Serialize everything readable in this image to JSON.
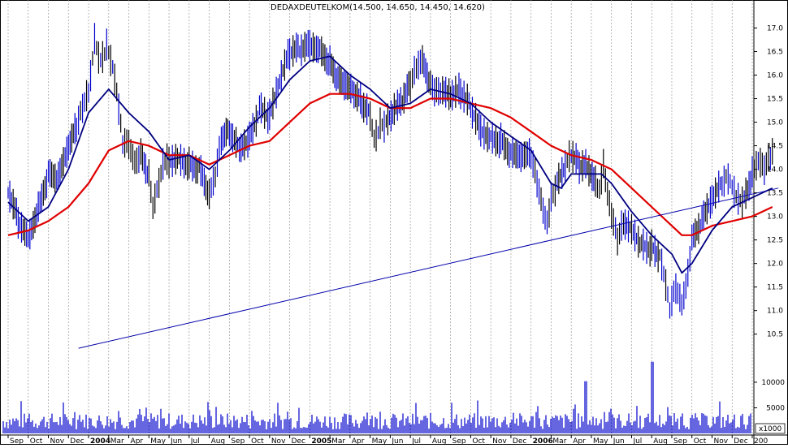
{
  "chart_data": {
    "type": "line",
    "title": "DEDAXDEUTELKOM(14.500, 14.650, 14.450, 14.620)",
    "price_axis": {
      "ticks": [
        "17.0",
        "16.5",
        "16.0",
        "15.5",
        "15.0",
        "14.5",
        "14.0",
        "13.5",
        "13.0",
        "12.5",
        "12.0",
        "11.5",
        "11.0",
        "10.5"
      ],
      "ylim": [
        10.15,
        17.25
      ]
    },
    "volume_axis": {
      "ticks": [
        "10000",
        "5000"
      ],
      "base_label": "x1000",
      "ylim": [
        0,
        16500
      ]
    },
    "x_ticks": [
      "Sep",
      "Oct",
      "Nov",
      "Dec",
      "2004",
      "Mar",
      "Apr",
      "May",
      "Jun",
      "Jul",
      "Aug",
      "Sep",
      "Oct",
      "Nov",
      "Dec",
      "2005",
      "Mar",
      "Apr",
      "May",
      "Jun",
      "Jul",
      "Aug",
      "Sep",
      "Oct",
      "Nov",
      "Dec",
      "2006",
      "Mar",
      "Apr",
      "May",
      "Jun",
      "Jul",
      "Aug",
      "Sep",
      "Oct",
      "Nov",
      "Dec",
      "200"
    ],
    "x_range": {
      "start": "2003-09",
      "end": "2006-12"
    },
    "grid": true,
    "series": [
      {
        "kind": "price-bars",
        "color": "#0000cc",
        "points": [
          [
            0,
            13.5
          ],
          [
            0.5,
            13.0
          ],
          [
            1,
            12.7
          ],
          [
            1.5,
            13.3
          ],
          [
            2,
            13.9
          ],
          [
            2.5,
            13.7
          ],
          [
            3,
            14.3
          ],
          [
            3.4,
            14.8
          ],
          [
            3.7,
            15.4
          ],
          [
            4.0,
            15.8
          ],
          [
            4.3,
            16.9
          ],
          [
            4.6,
            16.3
          ],
          [
            4.9,
            16.5
          ],
          [
            5.2,
            16.0
          ],
          [
            5.5,
            15.2
          ],
          [
            5.7,
            14.6
          ],
          [
            6.0,
            14.7
          ],
          [
            6.3,
            14.3
          ],
          [
            6.6,
            14.4
          ],
          [
            7.0,
            13.8
          ],
          [
            7.2,
            13.0
          ],
          [
            7.5,
            13.6
          ],
          [
            7.8,
            14.2
          ],
          [
            8.0,
            14.3
          ],
          [
            8.5,
            14.4
          ],
          [
            9.0,
            14.2
          ],
          [
            9.5,
            14.0
          ],
          [
            10.0,
            13.3
          ],
          [
            10.3,
            13.7
          ],
          [
            10.6,
            14.6
          ],
          [
            11.0,
            14.9
          ],
          [
            11.5,
            14.6
          ],
          [
            12.0,
            14.8
          ],
          [
            12.5,
            15.3
          ],
          [
            13.0,
            15.0
          ],
          [
            13.5,
            15.7
          ],
          [
            14.0,
            16.4
          ],
          [
            14.5,
            16.6
          ],
          [
            15.0,
            16.8
          ],
          [
            15.5,
            16.7
          ],
          [
            16.0,
            16.3
          ],
          [
            16.4,
            15.8
          ],
          [
            16.8,
            15.6
          ],
          [
            17.2,
            15.5
          ],
          [
            17.6,
            15.4
          ],
          [
            18.0,
            15.3
          ],
          [
            18.2,
            14.8
          ],
          [
            18.5,
            15.0
          ],
          [
            18.8,
            14.9
          ],
          [
            19.2,
            15.1
          ],
          [
            19.6,
            15.3
          ],
          [
            20.0,
            15.8
          ],
          [
            20.3,
            16.3
          ],
          [
            20.6,
            16.5
          ],
          [
            21.0,
            15.9
          ],
          [
            21.3,
            15.6
          ],
          [
            21.6,
            15.5
          ],
          [
            22.0,
            15.4
          ],
          [
            22.5,
            15.6
          ],
          [
            23.0,
            15.4
          ],
          [
            23.5,
            15.0
          ],
          [
            24.0,
            14.8
          ],
          [
            24.5,
            14.6
          ],
          [
            25.0,
            14.2
          ],
          [
            25.5,
            14.1
          ],
          [
            26.0,
            14.2
          ],
          [
            26.3,
            13.8
          ],
          [
            26.6,
            13.3
          ],
          [
            26.8,
            13.0
          ],
          [
            27.0,
            13.4
          ],
          [
            27.3,
            13.6
          ],
          [
            27.7,
            13.9
          ],
          [
            28.0,
            14.2
          ],
          [
            28.4,
            14.1
          ],
          [
            28.8,
            14.2
          ],
          [
            29.2,
            13.9
          ],
          [
            29.4,
            13.6
          ],
          [
            29.6,
            14.0
          ],
          [
            29.8,
            13.3
          ],
          [
            30.0,
            12.9
          ],
          [
            30.3,
            12.5
          ],
          [
            30.6,
            13.0
          ],
          [
            31.0,
            12.9
          ],
          [
            31.5,
            12.5
          ],
          [
            32.0,
            12.3
          ],
          [
            32.4,
            12.0
          ],
          [
            32.7,
            11.4
          ],
          [
            32.9,
            11.0
          ],
          [
            33.2,
            11.6
          ],
          [
            33.5,
            11.3
          ],
          [
            33.8,
            11.9
          ],
          [
            34.0,
            12.5
          ],
          [
            34.5,
            12.8
          ],
          [
            35.0,
            13.2
          ],
          [
            35.5,
            13.6
          ],
          [
            35.8,
            13.9
          ],
          [
            36.0,
            13.8
          ],
          [
            36.3,
            13.5
          ],
          [
            36.6,
            13.4
          ],
          [
            37.0,
            13.8
          ],
          [
            37.3,
            14.0
          ],
          [
            37.6,
            13.9
          ],
          [
            37.9,
            14.3
          ],
          [
            38.1,
            14.6
          ]
        ]
      },
      {
        "kind": "short-ma",
        "color": "#000080",
        "points": [
          [
            0,
            13.3
          ],
          [
            1,
            12.9
          ],
          [
            2,
            13.2
          ],
          [
            3,
            14.0
          ],
          [
            4,
            15.2
          ],
          [
            5,
            15.7
          ],
          [
            6,
            15.2
          ],
          [
            7,
            14.8
          ],
          [
            8,
            14.2
          ],
          [
            9,
            14.3
          ],
          [
            10,
            14.0
          ],
          [
            11,
            14.4
          ],
          [
            12,
            14.9
          ],
          [
            13,
            15.3
          ],
          [
            14,
            15.9
          ],
          [
            15,
            16.3
          ],
          [
            16,
            16.4
          ],
          [
            17,
            16.0
          ],
          [
            18,
            15.7
          ],
          [
            19,
            15.3
          ],
          [
            20,
            15.4
          ],
          [
            21,
            15.7
          ],
          [
            22,
            15.6
          ],
          [
            23,
            15.4
          ],
          [
            24,
            15.0
          ],
          [
            25,
            14.7
          ],
          [
            26,
            14.4
          ],
          [
            27,
            13.7
          ],
          [
            27.5,
            13.6
          ],
          [
            28,
            13.9
          ],
          [
            29,
            13.9
          ],
          [
            29.5,
            13.9
          ],
          [
            30,
            13.7
          ],
          [
            31,
            13.1
          ],
          [
            32,
            12.6
          ],
          [
            33,
            12.2
          ],
          [
            33.5,
            11.8
          ],
          [
            34,
            12.0
          ],
          [
            35,
            12.7
          ],
          [
            36,
            13.2
          ],
          [
            37,
            13.4
          ],
          [
            38,
            13.6
          ]
        ]
      },
      {
        "kind": "long-ma",
        "color": "#e00000",
        "points": [
          [
            0,
            12.6
          ],
          [
            1,
            12.7
          ],
          [
            2,
            12.9
          ],
          [
            3,
            13.2
          ],
          [
            4,
            13.7
          ],
          [
            5,
            14.4
          ],
          [
            6,
            14.6
          ],
          [
            7,
            14.5
          ],
          [
            8,
            14.3
          ],
          [
            9,
            14.3
          ],
          [
            10,
            14.1
          ],
          [
            11,
            14.3
          ],
          [
            12,
            14.5
          ],
          [
            13,
            14.6
          ],
          [
            14,
            15.0
          ],
          [
            15,
            15.4
          ],
          [
            16,
            15.6
          ],
          [
            17,
            15.6
          ],
          [
            18,
            15.5
          ],
          [
            19,
            15.3
          ],
          [
            20,
            15.3
          ],
          [
            21,
            15.5
          ],
          [
            22,
            15.5
          ],
          [
            23,
            15.4
          ],
          [
            24,
            15.3
          ],
          [
            25,
            15.1
          ],
          [
            26,
            14.8
          ],
          [
            27,
            14.5
          ],
          [
            28,
            14.3
          ],
          [
            29,
            14.2
          ],
          [
            30,
            14.0
          ],
          [
            31,
            13.6
          ],
          [
            32,
            13.2
          ],
          [
            33,
            12.8
          ],
          [
            33.5,
            12.6
          ],
          [
            34,
            12.6
          ],
          [
            35,
            12.8
          ],
          [
            36,
            12.9
          ],
          [
            37,
            13.0
          ],
          [
            38,
            13.2
          ]
        ]
      },
      {
        "kind": "trendline",
        "color": "#0000aa",
        "points": [
          [
            3.5,
            10.2
          ],
          [
            38.3,
            13.6
          ]
        ]
      }
    ]
  }
}
